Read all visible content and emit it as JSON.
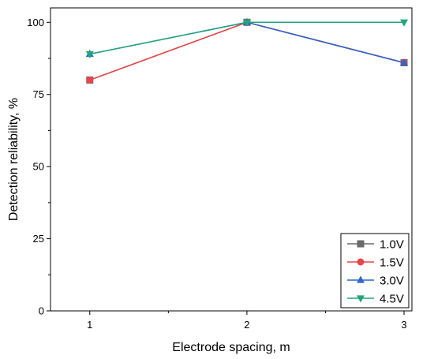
{
  "chart_data": {
    "type": "line",
    "xlabel": "Electrode spacing, m",
    "ylabel": "Detection reliability, %",
    "x": [
      1,
      2,
      3
    ],
    "xlim": [
      0.75,
      3.05
    ],
    "ylim": [
      0,
      105
    ],
    "xticks": [
      1,
      2,
      3
    ],
    "yticks": [
      0,
      25,
      50,
      75,
      100
    ],
    "grid": false,
    "legend_position": "bottom-right",
    "series": [
      {
        "name": "1.0V",
        "values": [
          80,
          100,
          86
        ],
        "color": "#6b6b6b",
        "marker": "square"
      },
      {
        "name": "1.5V",
        "values": [
          80,
          100,
          86
        ],
        "color": "#e8474a",
        "marker": "circle"
      },
      {
        "name": "3.0V",
        "values": [
          89,
          100,
          86
        ],
        "color": "#2f66c8",
        "marker": "triangle-up"
      },
      {
        "name": "4.5V",
        "values": [
          89,
          100,
          100
        ],
        "color": "#23a57e",
        "marker": "triangle-down"
      }
    ]
  }
}
